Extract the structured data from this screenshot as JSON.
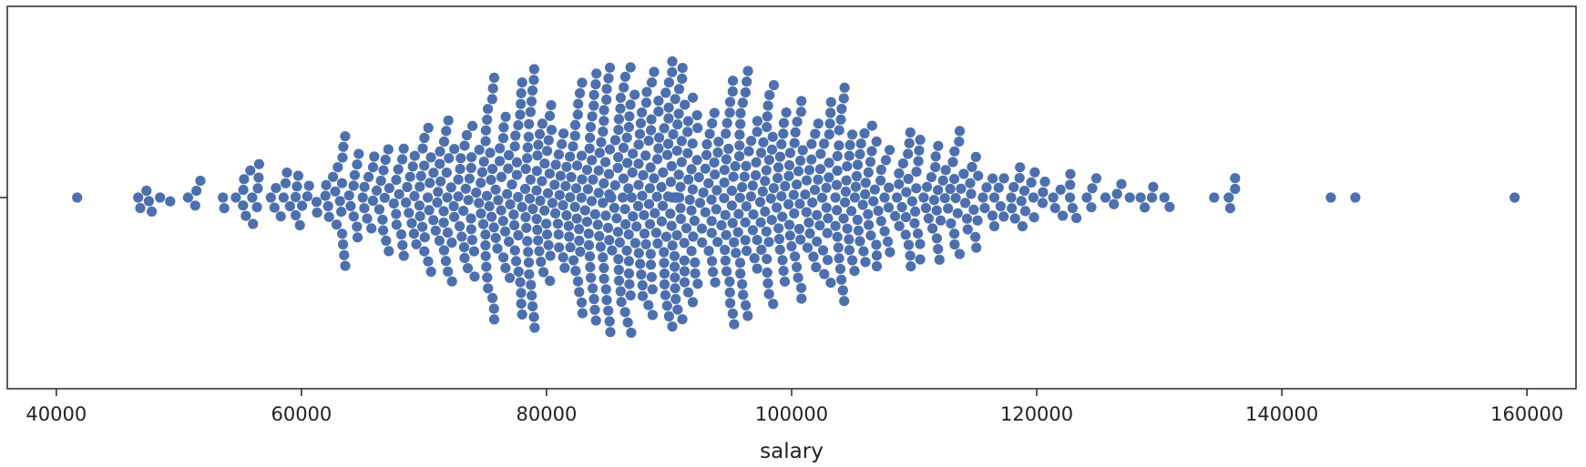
{
  "chart_data": {
    "type": "swarm",
    "orientation": "horizontal",
    "xlabel": "salary",
    "ylabel": "",
    "xlim": [
      36000,
      164000
    ],
    "xticks": [
      40000,
      60000,
      80000,
      100000,
      120000,
      140000,
      160000
    ],
    "xtick_labels": [
      "40000",
      "60000",
      "80000",
      "100000",
      "120000",
      "140000",
      "160000"
    ],
    "grid": false,
    "legend": "none",
    "point_color": "#4c6fae",
    "n_points": 1000,
    "summary": {
      "min": 41700,
      "approx_mode": 90000,
      "approx_center": 90000,
      "max": 159000
    },
    "outliers": [
      41700,
      144000,
      146000,
      159000
    ]
  }
}
